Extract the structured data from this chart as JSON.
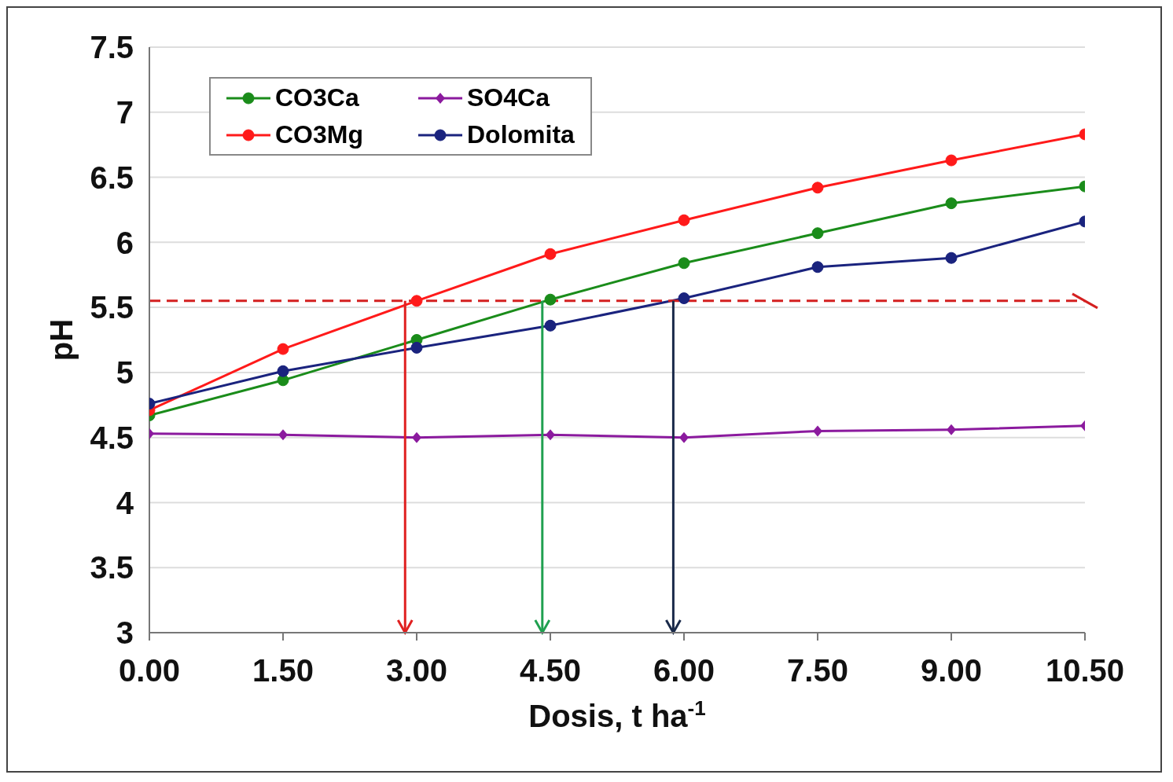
{
  "chart_data": {
    "type": "line",
    "xlabel": "Dosis, t ha$^{-1}$",
    "ylabel": "pH",
    "x": [
      0,
      1.5,
      3,
      4.5,
      6,
      7.5,
      9,
      10.5
    ],
    "xlim": [
      0,
      10.5
    ],
    "xticks": [
      {
        "value": 0,
        "label": "0.00"
      },
      {
        "value": 1.5,
        "label": "1.50"
      },
      {
        "value": 3,
        "label": "3.00"
      },
      {
        "value": 4.5,
        "label": "4.50"
      },
      {
        "value": 6,
        "label": "6.00"
      },
      {
        "value": 7.5,
        "label": "7.50"
      },
      {
        "value": 9,
        "label": "9.00"
      },
      {
        "value": 10.5,
        "label": "10.50"
      }
    ],
    "ylim": [
      3,
      7.5
    ],
    "yticks": [
      3,
      3.5,
      4,
      4.5,
      5,
      5.5,
      6,
      6.5,
      7,
      7.5
    ],
    "series": [
      {
        "name": "CO3Ca",
        "color": "#1a8c1a",
        "marker": "circle",
        "values": [
          4.67,
          4.94,
          5.25,
          5.56,
          5.84,
          6.07,
          6.3,
          6.43
        ]
      },
      {
        "name": "CO3Mg",
        "color": "#ff1a1a",
        "marker": "circle",
        "values": [
          4.71,
          5.18,
          5.55,
          5.91,
          6.17,
          6.42,
          6.63,
          6.83
        ]
      },
      {
        "name": "SO4Ca",
        "color": "#8b1a9e",
        "marker": "diamond",
        "values": [
          4.53,
          4.52,
          4.5,
          4.52,
          4.5,
          4.55,
          4.56,
          4.59
        ]
      },
      {
        "name": "Dolomita",
        "color": "#1a237e",
        "marker": "circle",
        "values": [
          4.76,
          5.01,
          5.19,
          5.36,
          5.57,
          5.81,
          5.88,
          6.16
        ]
      }
    ],
    "ref_lines": [
      {
        "axis": "y",
        "value": 5.55,
        "color": "#d42020",
        "line_style": "dashed"
      },
      {
        "axis": "x",
        "value": 2.87,
        "color": "#e02020",
        "line_style": "solid"
      },
      {
        "axis": "x",
        "value": 4.41,
        "color": "#20a050",
        "line_style": "solid"
      },
      {
        "axis": "x",
        "value": 5.88,
        "color": "#1a2a4a",
        "line_style": "solid"
      }
    ],
    "grid": "y",
    "legend": "top left",
    "line_style": "solid"
  }
}
